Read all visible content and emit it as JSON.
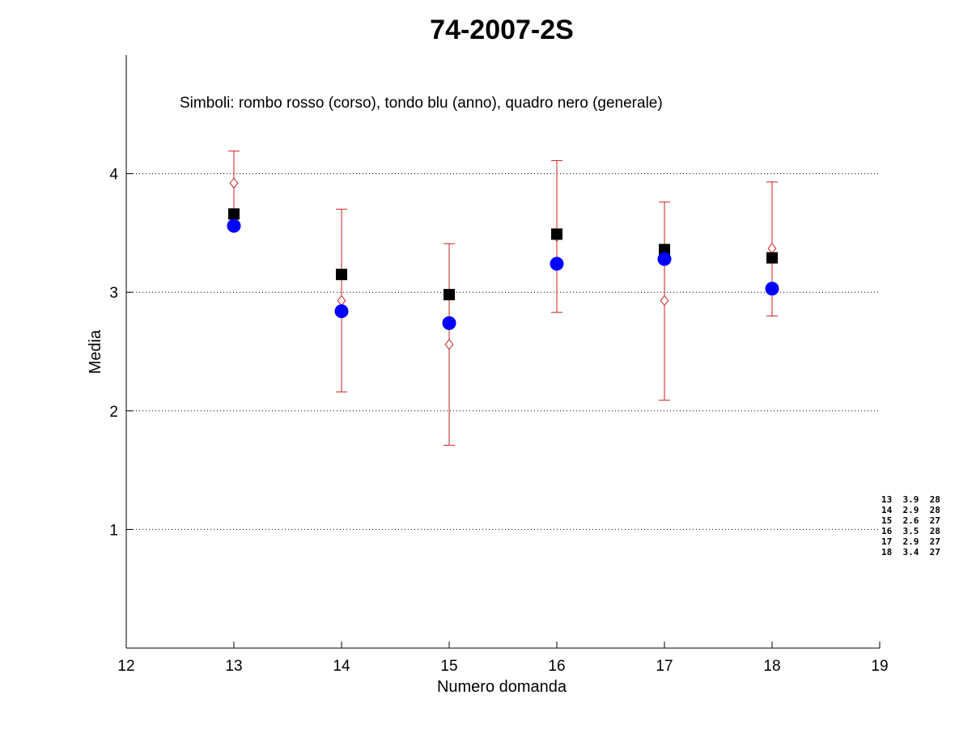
{
  "chart_data": {
    "type": "scatter",
    "title": "74-2007-2S",
    "xlabel": "Numero domanda",
    "ylabel": "Media",
    "xlim": [
      12,
      19
    ],
    "ylim": [
      0,
      5
    ],
    "xticks": [
      12,
      13,
      14,
      15,
      16,
      17,
      18,
      19
    ],
    "yticks": [
      1,
      2,
      3,
      4
    ],
    "grid": "horizontal dotted",
    "annotation": "Simboli: rombo rosso (corso), tondo blu (anno), quadro nero (generale)",
    "series": [
      {
        "marker": "diamond",
        "color": "#cc2222",
        "x": [
          13,
          14,
          15,
          16,
          17,
          18
        ],
        "y": [
          3.92,
          2.93,
          2.56,
          3.47,
          2.93,
          3.37
        ],
        "error_low": [
          3.65,
          2.16,
          1.71,
          2.83,
          2.09,
          2.8
        ],
        "error_high": [
          4.19,
          3.7,
          3.41,
          4.11,
          3.76,
          3.93
        ]
      },
      {
        "marker": "circle",
        "color": "#0000ff",
        "x": [
          13,
          14,
          15,
          16,
          17,
          18
        ],
        "y": [
          3.56,
          2.84,
          2.74,
          3.24,
          3.28,
          3.03
        ]
      },
      {
        "marker": "square",
        "color": "#000000",
        "x": [
          13,
          14,
          15,
          16,
          17,
          18
        ],
        "y": [
          3.66,
          3.15,
          2.98,
          3.49,
          3.36,
          3.29
        ]
      }
    ],
    "side_table": [
      "13  3.9  28",
      "14  2.9  28",
      "15  2.6  27",
      "16  3.5  28",
      "17  2.9  27",
      "18  3.4  27"
    ]
  }
}
